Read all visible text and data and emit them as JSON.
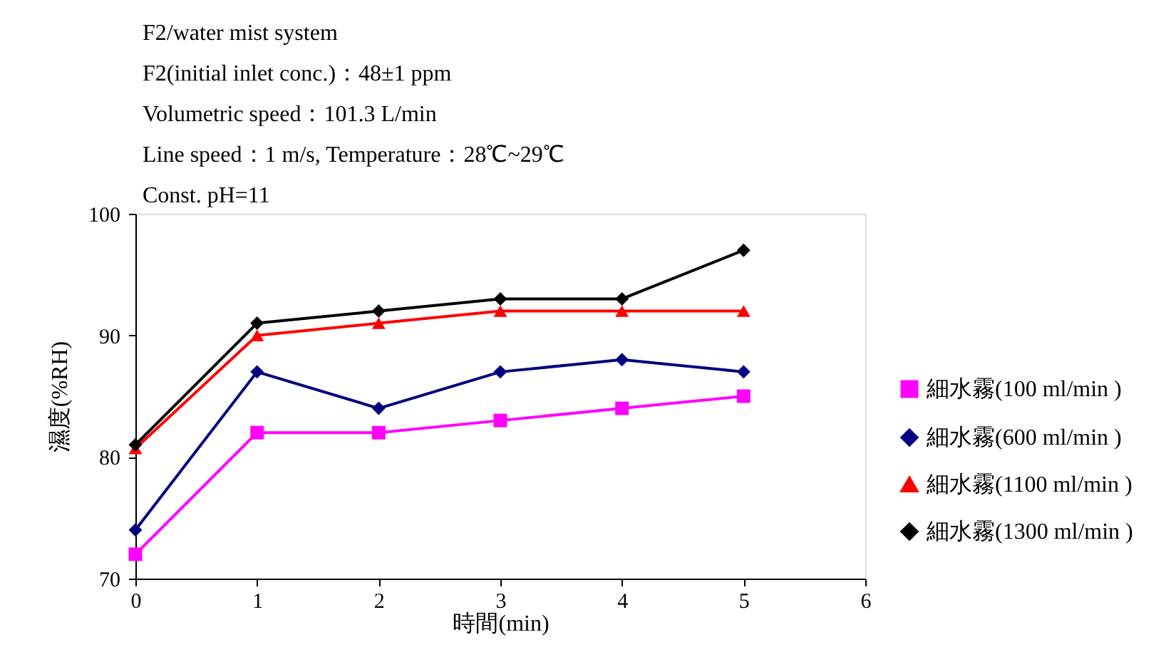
{
  "chart_data": {
    "type": "line",
    "xlabel": "時間(min)",
    "ylabel": "濕度(%RH)",
    "annotations": [
      "F2/water mist system",
      "F2(initial inlet conc.)：48±1 ppm",
      "Volumetric speed：101.3 L/min",
      "Line speed：1 m/s, Temperature：28℃~29℃",
      "Const. pH=11"
    ],
    "x": [
      0,
      1,
      2,
      3,
      4,
      5
    ],
    "series": [
      {
        "name": "細水霧(100 ml/min )",
        "color": "#ff00ff",
        "marker": "square",
        "values": [
          72,
          82,
          82,
          83,
          84,
          85
        ]
      },
      {
        "name": "細水霧(600 ml/min )",
        "color": "#000080",
        "marker": "diamond",
        "values": [
          74,
          87,
          84,
          87,
          88,
          87
        ]
      },
      {
        "name": "細水霧(1100 ml/min )",
        "color": "#ff0000",
        "marker": "triangle",
        "values": [
          80.7,
          90,
          91,
          92,
          92,
          92
        ]
      },
      {
        "name": "細水霧(1300 ml/min )",
        "color": "#000000",
        "marker": "diamond",
        "values": [
          81,
          91,
          92,
          93,
          93,
          97
        ]
      }
    ],
    "xlim": [
      0,
      6
    ],
    "xticks": [
      0,
      1,
      2,
      3,
      4,
      5,
      6
    ],
    "ylim": [
      70,
      100
    ],
    "yticks": [
      70,
      80,
      90,
      100
    ],
    "grid": false,
    "legend": "right"
  }
}
